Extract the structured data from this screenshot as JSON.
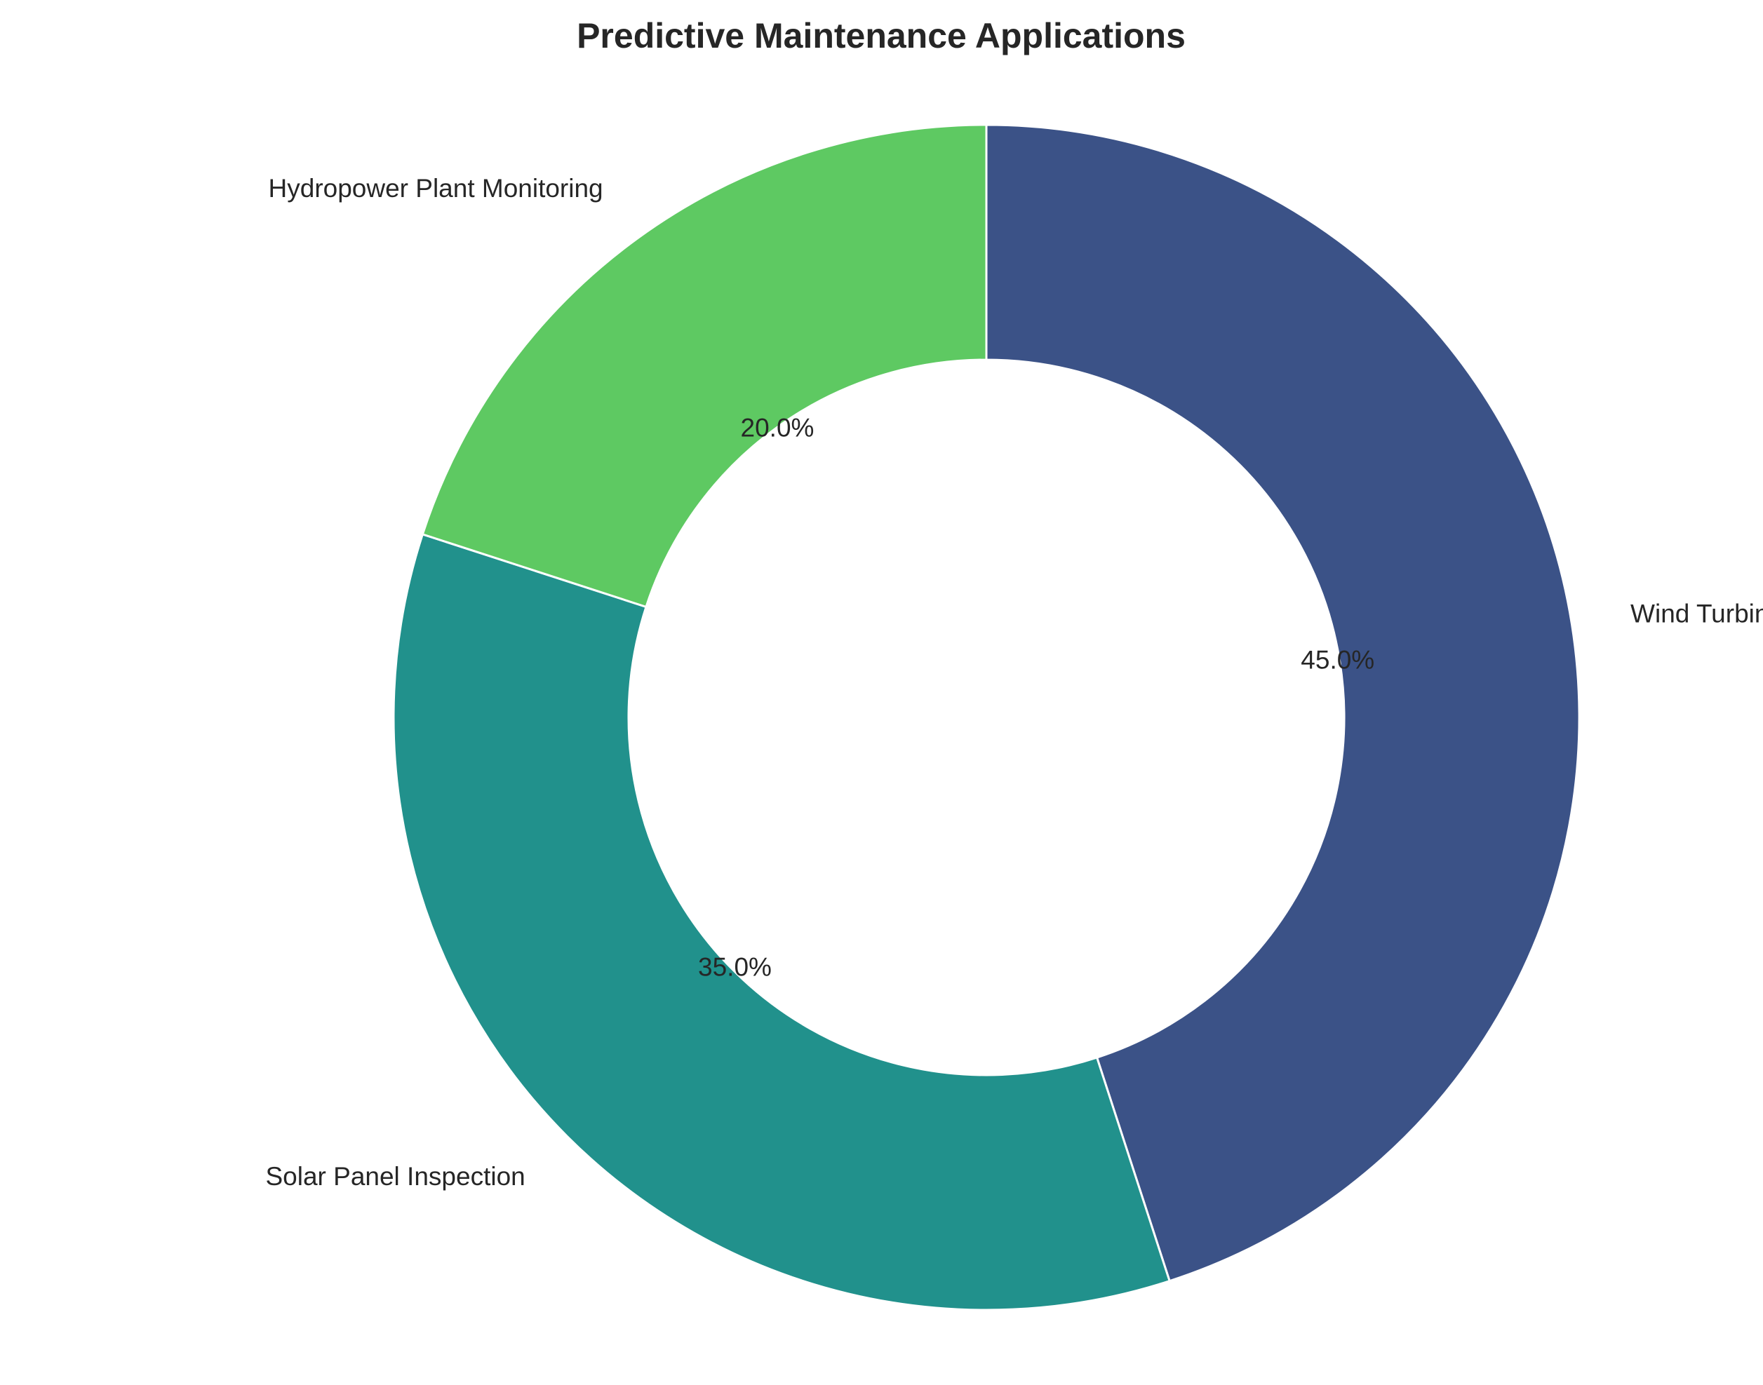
{
  "chart_data": {
    "type": "pie",
    "title": "Predictive Maintenance Applications",
    "categories": [
      "Wind Turbine Monitoring",
      "Solar Panel Inspection",
      "Hydropower Plant Monitoring"
    ],
    "values": [
      45.0,
      35.0,
      20.0
    ],
    "value_labels": [
      "45.0%",
      "35.0%",
      "20.0%"
    ],
    "colors": [
      "#3b5287",
      "#21918c",
      "#5ec962"
    ],
    "donut": true,
    "start_angle_deg": 90,
    "direction": "clockwise",
    "legend": "none"
  }
}
